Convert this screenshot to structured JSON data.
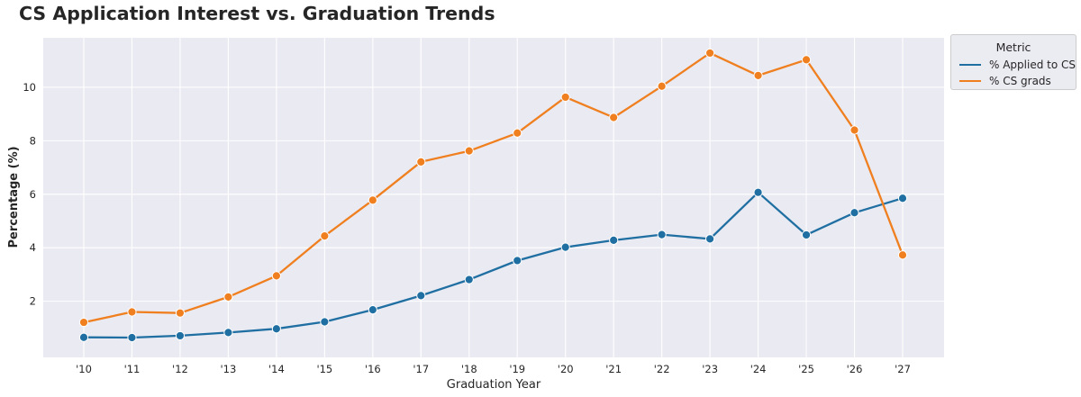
{
  "chart_data": {
    "type": "line",
    "title": "CS Application Interest vs. Graduation Trends",
    "xlabel": "Graduation Year",
    "ylabel": "Percentage (%)",
    "categories": [
      "'10",
      "'11",
      "'12",
      "'13",
      "'14",
      "'15",
      "'16",
      "'17",
      "'18",
      "'19",
      "'20",
      "'21",
      "'22",
      "'23",
      "'24",
      "'25",
      "'26",
      "'27"
    ],
    "series": [
      {
        "name": "% Applied to CS",
        "color": "#1f6fa2",
        "values": [
          0.65,
          0.64,
          0.71,
          0.83,
          0.97,
          1.23,
          1.68,
          2.21,
          2.81,
          3.52,
          4.02,
          4.28,
          4.49,
          4.33,
          6.07,
          4.48,
          5.31,
          5.85
        ]
      },
      {
        "name": "% CS grads",
        "color": "#ef7f1f",
        "values": [
          1.21,
          1.6,
          1.56,
          2.16,
          2.95,
          4.44,
          5.78,
          7.21,
          7.62,
          8.29,
          9.63,
          8.87,
          10.04,
          11.28,
          10.44,
          11.03,
          8.4,
          3.73
        ]
      }
    ],
    "yticks": [
      2,
      4,
      6,
      8,
      10
    ],
    "ylim": [
      -0.1,
      11.85
    ],
    "grid": true,
    "legend": {
      "title": "Metric",
      "placement": "outside-top-right"
    }
  }
}
